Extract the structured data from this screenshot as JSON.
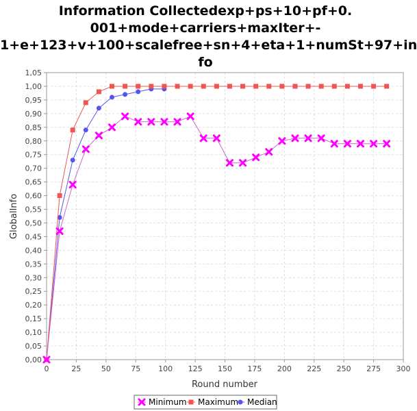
{
  "chart_data": {
    "type": "line",
    "title_lines": [
      "Information Collectedexp+ps+10+pf+0.",
      "001+mode+carriers+maxIter+-",
      "1+e+123+v+100+scalefree+sn+4+eta+1+numSt+97+in",
      "fo"
    ],
    "xlabel": "Round number",
    "ylabel": "GlobalInfo",
    "xlim": [
      0,
      300
    ],
    "ylim": [
      0,
      1.05
    ],
    "x_ticks": [
      "0",
      "25",
      "50",
      "75",
      "100",
      "125",
      "150",
      "175",
      "200",
      "225",
      "250",
      "275",
      "300"
    ],
    "y_ticks": [
      "0,00",
      "0,05",
      "0,10",
      "0,15",
      "0,20",
      "0,25",
      "0,30",
      "0,35",
      "0,40",
      "0,45",
      "0,50",
      "0,55",
      "0,60",
      "0,65",
      "0,70",
      "0,75",
      "0,80",
      "0,85",
      "0,90",
      "0,95",
      "1,00",
      "1,05"
    ],
    "grid": true,
    "legend_position": "bottom-center",
    "series": [
      {
        "name": "Minimum",
        "color": "#ff00ff",
        "line_color": "#cc66cc",
        "marker": "x",
        "x": [
          0,
          11,
          22,
          33,
          44,
          55,
          66,
          77,
          88,
          99,
          110,
          121,
          132,
          143,
          154,
          165,
          176,
          187,
          198,
          209,
          220,
          231,
          242,
          253,
          264,
          275,
          286
        ],
        "y": [
          0.0,
          0.47,
          0.64,
          0.77,
          0.82,
          0.85,
          0.89,
          0.87,
          0.87,
          0.87,
          0.87,
          0.89,
          0.81,
          0.81,
          0.72,
          0.72,
          0.74,
          0.76,
          0.8,
          0.81,
          0.81,
          0.81,
          0.79,
          0.79,
          0.79,
          0.79,
          0.79
        ]
      },
      {
        "name": "Maximum",
        "color": "#ee5555",
        "line_color": "#ee5555",
        "marker": "square",
        "x": [
          0,
          11,
          22,
          33,
          44,
          55,
          66,
          77,
          88,
          99,
          110,
          121,
          132,
          143,
          154,
          165,
          176,
          187,
          198,
          209,
          220,
          231,
          242,
          253,
          264,
          275,
          286
        ],
        "y": [
          0.0,
          0.6,
          0.84,
          0.94,
          0.98,
          1.0,
          1.0,
          1.0,
          1.0,
          1.0,
          1.0,
          1.0,
          1.0,
          1.0,
          1.0,
          1.0,
          1.0,
          1.0,
          1.0,
          1.0,
          1.0,
          1.0,
          1.0,
          1.0,
          1.0,
          1.0,
          1.0
        ]
      },
      {
        "name": "Median",
        "color": "#5555ee",
        "line_color": "#5555ee",
        "marker": "circle",
        "x": [
          0,
          11,
          22,
          33,
          44,
          55,
          66,
          77,
          88,
          99
        ],
        "y": [
          0.0,
          0.52,
          0.73,
          0.84,
          0.92,
          0.96,
          0.97,
          0.98,
          0.99,
          0.99
        ]
      }
    ]
  }
}
